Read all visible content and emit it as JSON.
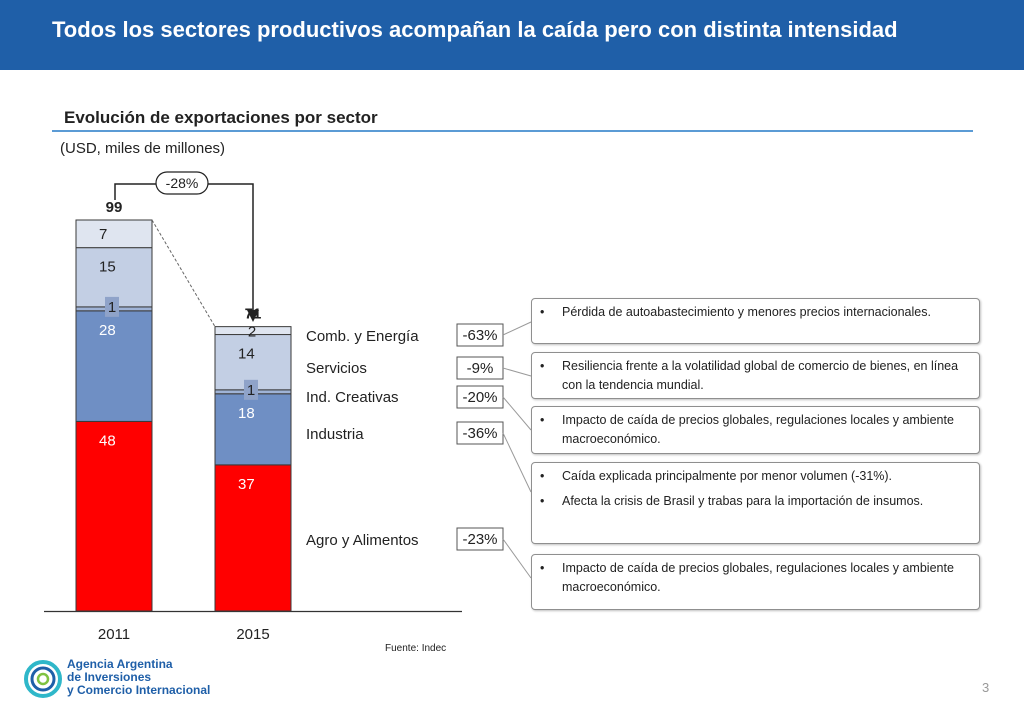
{
  "header": {
    "title": "Todos los sectores productivos acompañan la caída pero con distinta intensidad"
  },
  "section": {
    "title": "Evolución de exportaciones por sector",
    "units": "(USD, miles de millones)"
  },
  "colors": {
    "header_bg": "#1f5fa8",
    "agro": "#ff0000",
    "industria": "#6f8fc4",
    "creativas": "#9fb3d6",
    "servicios": "#c3cfe4",
    "energia": "#dfe5f0",
    "rule": "#5b9bd5"
  },
  "chart_data": {
    "type": "bar",
    "stacked": true,
    "categories": [
      "2011",
      "2015"
    ],
    "totals": [
      99,
      71
    ],
    "series": [
      {
        "name": "Agro y Alimentos",
        "values": [
          48,
          37
        ],
        "change": "-23%"
      },
      {
        "name": "Industria",
        "values": [
          28,
          18
        ],
        "change": "-36%"
      },
      {
        "name": "Ind. Creativas",
        "values": [
          1,
          1
        ],
        "change": "-20%"
      },
      {
        "name": "Servicios",
        "values": [
          15,
          14
        ],
        "change": "-9%"
      },
      {
        "name": "Comb. y Energía",
        "values": [
          7,
          2
        ],
        "change": "-63%"
      }
    ],
    "total_change": "-28%",
    "ylim": [
      0,
      99
    ]
  },
  "notes": [
    {
      "lines": [
        "Pérdida de autoabastecimiento y menores precios internacionales."
      ]
    },
    {
      "lines": [
        "Resiliencia frente a la volatilidad global de comercio de bienes, en línea con la tendencia mundial."
      ]
    },
    {
      "lines": [
        "Impacto de caída de precios globales, regulaciones locales y ambiente macroeconómico."
      ]
    },
    {
      "lines": [
        "Caída explicada principalmente por menor volumen (-31%).",
        "Afecta la crisis de Brasil y trabas para la importación de insumos."
      ]
    },
    {
      "lines": [
        "Impacto de caída de precios globales, regulaciones locales y ambiente macroeconómico."
      ]
    }
  ],
  "bullet_char": "•",
  "footer": {
    "source": "Fuente: Indec",
    "logo_lines": [
      "Agencia Argentina",
      "de Inversiones",
      "y Comercio Internacional"
    ],
    "page": "3"
  }
}
